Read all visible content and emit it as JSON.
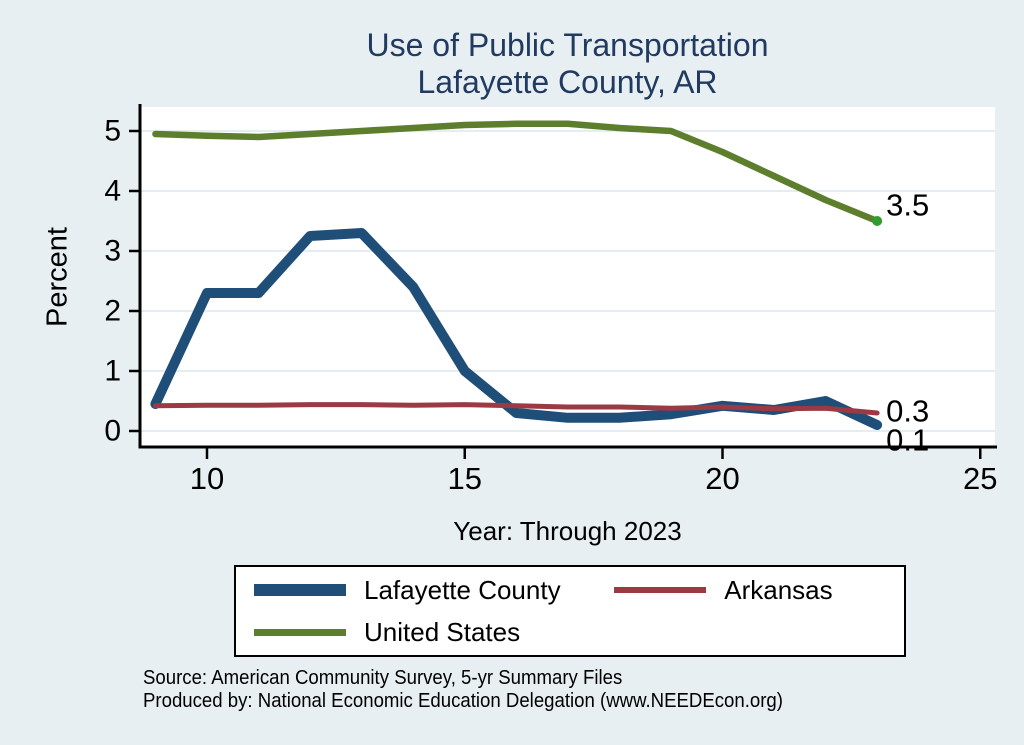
{
  "title": {
    "line1": "Use of Public Transportation",
    "line2": "Lafayette County, AR"
  },
  "axes": {
    "y_title": "Percent",
    "x_title": "Year: Through 2023"
  },
  "footer": {
    "source": "Source: American Community Survey, 5-yr Summary Files",
    "produced_by": "Produced by: National Economic Education Delegation (www.NEEDEcon.org)"
  },
  "legend": {
    "items": [
      {
        "label": "Lafayette County",
        "color": "#1f4e79"
      },
      {
        "label": "Arkansas",
        "color": "#9c3a44"
      },
      {
        "label": "United States",
        "color": "#5d7e2d"
      }
    ]
  },
  "chart_data": {
    "type": "line",
    "x": [
      9,
      10,
      11,
      12,
      13,
      14,
      15,
      16,
      17,
      18,
      19,
      20,
      21,
      22,
      23
    ],
    "series": [
      {
        "name": "Lafayette County",
        "color": "#1f4e79",
        "width": 10,
        "values": [
          0.45,
          2.3,
          2.3,
          3.25,
          3.3,
          2.4,
          1.0,
          0.3,
          0.22,
          0.22,
          0.28,
          0.42,
          0.35,
          0.5,
          0.1
        ],
        "end_label": "0.1",
        "end_label_dy": 15
      },
      {
        "name": "Arkansas",
        "color": "#9c3a44",
        "width": 5,
        "values": [
          0.42,
          0.43,
          0.43,
          0.44,
          0.44,
          0.43,
          0.44,
          0.42,
          0.4,
          0.4,
          0.38,
          0.4,
          0.37,
          0.38,
          0.3
        ],
        "end_label": "0.3",
        "end_label_dy": -2
      },
      {
        "name": "United States",
        "color": "#5d7e2d",
        "width": 6.5,
        "values": [
          4.95,
          4.92,
          4.9,
          4.95,
          5.0,
          5.05,
          5.1,
          5.12,
          5.12,
          5.05,
          5.0,
          4.65,
          4.25,
          3.85,
          3.5
        ],
        "end_label": "3.5",
        "end_label_dy": -16,
        "end_marker_color": "#2f9e2f"
      }
    ],
    "xticks": [
      10,
      15,
      20,
      25
    ],
    "yticks": [
      0,
      1,
      2,
      3,
      4,
      5
    ],
    "xlim": [
      8.7,
      25.3
    ],
    "ylim": [
      -0.27,
      5.4
    ],
    "grid": true,
    "legend_position": "bottom",
    "title": "Use of Public Transportation — Lafayette County, AR",
    "xlabel": "Year: Through 2023",
    "ylabel": "Percent"
  },
  "colors": {
    "background": "#e7eff2",
    "plot_background": "#ffffff",
    "gridline": "#dbe7ee",
    "axis": "#000000",
    "title": "#213a60"
  }
}
